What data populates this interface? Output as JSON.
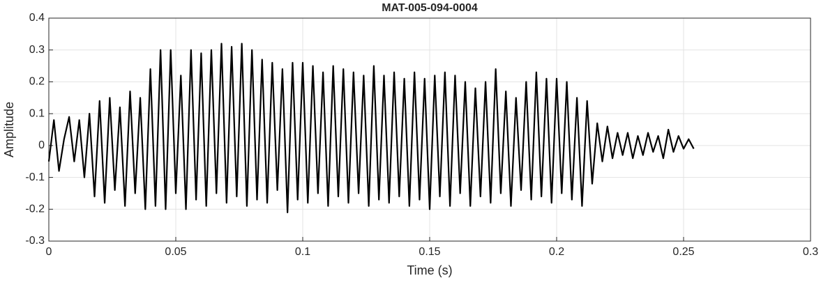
{
  "chart_data": {
    "type": "line",
    "title": "MAT-005-094-0004",
    "x_label": "Time (s)",
    "y_label": "Amplitude",
    "xlim": [
      0,
      0.3
    ],
    "xticks": [
      0,
      0.05,
      0.1,
      0.15,
      0.2,
      0.25,
      0.3
    ],
    "ylim": [
      -0.3,
      0.4
    ],
    "yticks": [
      -0.3,
      -0.2,
      -0.1,
      0,
      0.1,
      0.2,
      0.3,
      0.4
    ],
    "grid": true,
    "series": [
      {
        "color": "#000000",
        "x": [
          0,
          0.002,
          0.004,
          0.006,
          0.008,
          0.01,
          0.012,
          0.014,
          0.016,
          0.018,
          0.02,
          0.022,
          0.024,
          0.026,
          0.028,
          0.03,
          0.032,
          0.034,
          0.036,
          0.038,
          0.04,
          0.042,
          0.044,
          0.046,
          0.048,
          0.05,
          0.052,
          0.054,
          0.056,
          0.058,
          0.06,
          0.062,
          0.064,
          0.066,
          0.068,
          0.07,
          0.072,
          0.074,
          0.076,
          0.078,
          0.08,
          0.082,
          0.084,
          0.086,
          0.088,
          0.09,
          0.092,
          0.094,
          0.096,
          0.098,
          0.1,
          0.102,
          0.104,
          0.106,
          0.108,
          0.11,
          0.112,
          0.114,
          0.116,
          0.118,
          0.12,
          0.122,
          0.124,
          0.126,
          0.128,
          0.13,
          0.132,
          0.134,
          0.136,
          0.138,
          0.14,
          0.142,
          0.144,
          0.146,
          0.148,
          0.15,
          0.152,
          0.154,
          0.156,
          0.158,
          0.16,
          0.162,
          0.164,
          0.166,
          0.168,
          0.17,
          0.172,
          0.174,
          0.176,
          0.178,
          0.18,
          0.182,
          0.184,
          0.186,
          0.188,
          0.19,
          0.192,
          0.194,
          0.196,
          0.198,
          0.2,
          0.202,
          0.204,
          0.206,
          0.208,
          0.21,
          0.212,
          0.214,
          0.216,
          0.218,
          0.22,
          0.222,
          0.224,
          0.226,
          0.228,
          0.23,
          0.232,
          0.234,
          0.236,
          0.238,
          0.24,
          0.242,
          0.244,
          0.246,
          0.248,
          0.25,
          0.252,
          0.254
        ],
        "values": [
          -0.05,
          0.08,
          -0.08,
          0.02,
          0.09,
          -0.05,
          0.08,
          -0.1,
          0.1,
          -0.16,
          0.14,
          -0.18,
          0.15,
          -0.14,
          0.12,
          -0.19,
          0.17,
          -0.15,
          0.15,
          -0.2,
          0.24,
          -0.19,
          0.3,
          -0.2,
          0.3,
          -0.15,
          0.22,
          -0.2,
          0.3,
          -0.17,
          0.29,
          -0.19,
          0.3,
          -0.15,
          0.32,
          -0.18,
          0.31,
          -0.16,
          0.32,
          -0.19,
          0.3,
          -0.17,
          0.27,
          -0.18,
          0.26,
          -0.14,
          0.24,
          -0.21,
          0.26,
          -0.17,
          0.26,
          -0.18,
          0.25,
          -0.15,
          0.23,
          -0.19,
          0.25,
          -0.16,
          0.24,
          -0.18,
          0.23,
          -0.15,
          0.22,
          -0.19,
          0.25,
          -0.17,
          0.22,
          -0.18,
          0.23,
          -0.16,
          0.21,
          -0.19,
          0.23,
          -0.17,
          0.21,
          -0.2,
          0.22,
          -0.16,
          0.23,
          -0.19,
          0.22,
          -0.15,
          0.2,
          -0.19,
          0.18,
          -0.16,
          0.2,
          -0.18,
          0.24,
          -0.15,
          0.17,
          -0.19,
          0.15,
          -0.14,
          0.2,
          -0.17,
          0.23,
          -0.16,
          0.21,
          -0.18,
          0.21,
          -0.15,
          0.2,
          -0.17,
          0.15,
          -0.19,
          0.14,
          -0.12,
          0.07,
          -0.05,
          0.06,
          -0.04,
          0.04,
          -0.03,
          0.04,
          -0.04,
          0.03,
          -0.03,
          0.04,
          -0.02,
          0.03,
          -0.04,
          0.05,
          -0.02,
          0.03,
          -0.01,
          0.02,
          -0.01
        ]
      }
    ]
  }
}
